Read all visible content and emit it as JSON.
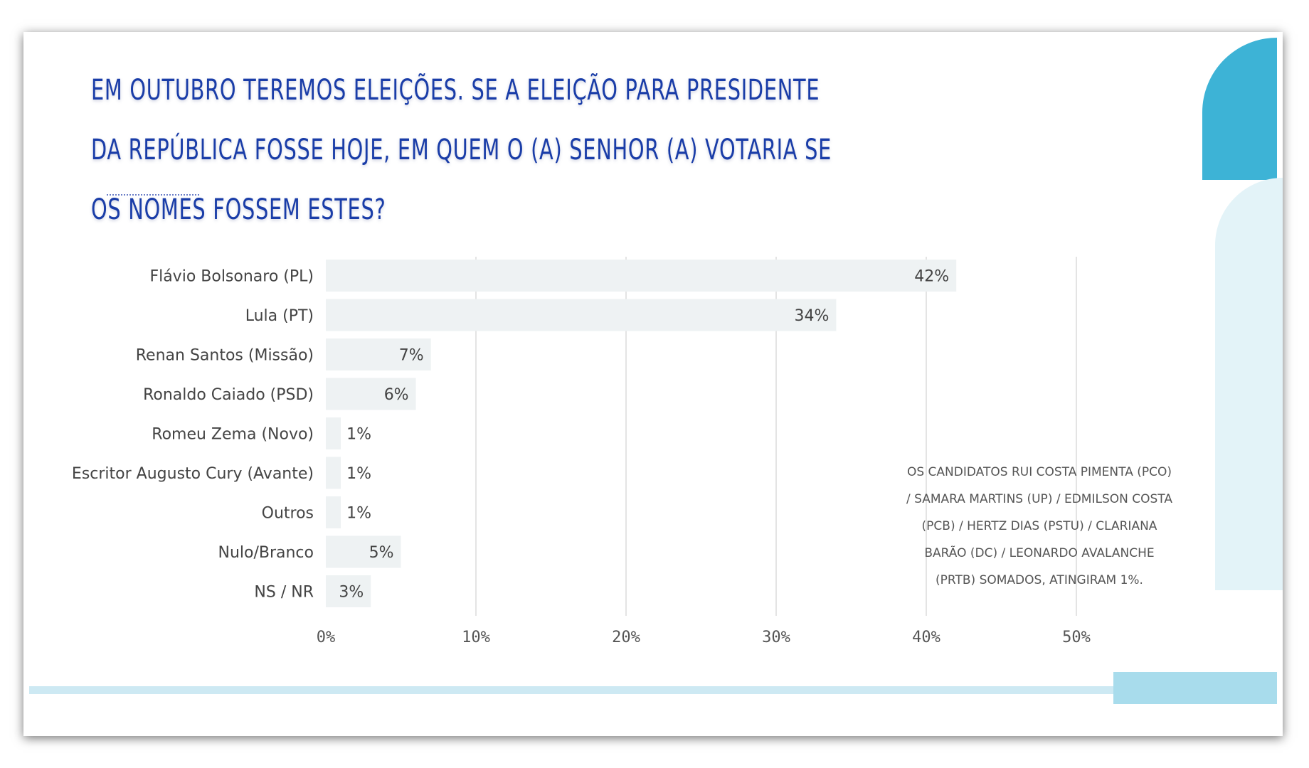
{
  "title": "EM OUTUBRO TEREMOS ELEIÇÕES. SE A ELEIÇÃO PARA PRESIDENTE DA REPÚBLICA FOSSE HOJE, EM QUEM O (A) SENHOR (A) VOTARIA SE OS NOMES FOSSEM ESTES?",
  "note": "OS CANDIDATOS RUI COSTA PIMENTA (PCO) / SAMARA MARTINS (UP) / EDMILSON COSTA (PCB) / HERTZ DIAS (PSTU) / CLARIANA BARÃO (DC) / LEONARDO AVALANCHE (PRTB) SOMADOS, ATINGIRAM 1%.",
  "colors": {
    "title": "#1a3da8",
    "bar": "#eef2f3",
    "grid": "#d3d3d3",
    "accent": "#3db3d6",
    "accent_light": "#e3f3f8"
  },
  "chart_data": {
    "type": "bar",
    "orientation": "horizontal",
    "categories": [
      "Flávio Bolsonaro (PL)",
      "Lula (PT)",
      "Renan Santos (Missão)",
      "Ronaldo Caiado (PSD)",
      "Romeu Zema (Novo)",
      "Escritor Augusto Cury (Avante)",
      "Outros",
      "Nulo/Branco",
      "NS / NR"
    ],
    "values": [
      42,
      34,
      7,
      6,
      1,
      1,
      1,
      5,
      3
    ],
    "data_labels": [
      "42%",
      "34%",
      "7%",
      "6%",
      "1%",
      "1%",
      "1%",
      "5%",
      "3%"
    ],
    "xlim": [
      0,
      50
    ],
    "xticks": [
      0,
      10,
      20,
      30,
      40,
      50
    ],
    "xtick_labels": [
      "0%",
      "10%",
      "20%",
      "30%",
      "40%",
      "50%"
    ],
    "grid": true,
    "legend": "none"
  }
}
